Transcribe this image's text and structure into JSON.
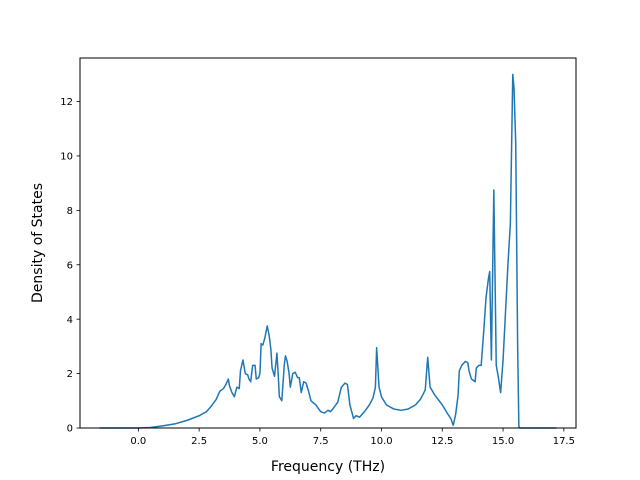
{
  "chart_data": {
    "type": "line",
    "title": "",
    "xlabel": "Frequency (THz)",
    "ylabel": "Density of States",
    "xlim": [
      -2.4,
      18.0
    ],
    "ylim": [
      0,
      13.6
    ],
    "xticks": [
      0.0,
      2.5,
      5.0,
      7.5,
      10.0,
      12.5,
      15.0,
      17.5
    ],
    "xtick_labels": [
      "0.0",
      "2.5",
      "5.0",
      "7.5",
      "10.0",
      "12.5",
      "15.0",
      "17.5"
    ],
    "yticks": [
      0,
      2,
      4,
      6,
      8,
      10,
      12
    ],
    "ytick_labels": [
      "0",
      "2",
      "4",
      "6",
      "8",
      "10",
      "12"
    ],
    "grid": false,
    "series": [
      {
        "color": "#1f77b4",
        "points": [
          [
            -1.6,
            0.0
          ],
          [
            0.0,
            0.0
          ],
          [
            0.5,
            0.02
          ],
          [
            1.0,
            0.08
          ],
          [
            1.5,
            0.15
          ],
          [
            2.0,
            0.28
          ],
          [
            2.5,
            0.45
          ],
          [
            2.8,
            0.6
          ],
          [
            3.0,
            0.8
          ],
          [
            3.2,
            1.05
          ],
          [
            3.35,
            1.35
          ],
          [
            3.5,
            1.45
          ],
          [
            3.6,
            1.6
          ],
          [
            3.7,
            1.8
          ],
          [
            3.75,
            1.55
          ],
          [
            3.85,
            1.3
          ],
          [
            3.95,
            1.15
          ],
          [
            4.05,
            1.5
          ],
          [
            4.15,
            1.45
          ],
          [
            4.2,
            2.1
          ],
          [
            4.3,
            2.5
          ],
          [
            4.4,
            2.0
          ],
          [
            4.5,
            1.95
          ],
          [
            4.55,
            1.8
          ],
          [
            4.62,
            1.7
          ],
          [
            4.7,
            2.3
          ],
          [
            4.8,
            2.3
          ],
          [
            4.85,
            1.8
          ],
          [
            4.95,
            1.85
          ],
          [
            5.0,
            2.0
          ],
          [
            5.05,
            3.1
          ],
          [
            5.12,
            3.05
          ],
          [
            5.2,
            3.3
          ],
          [
            5.3,
            3.75
          ],
          [
            5.38,
            3.4
          ],
          [
            5.45,
            2.9
          ],
          [
            5.5,
            2.2
          ],
          [
            5.6,
            1.9
          ],
          [
            5.7,
            2.75
          ],
          [
            5.75,
            2.0
          ],
          [
            5.8,
            1.15
          ],
          [
            5.9,
            1.0
          ],
          [
            6.0,
            2.3
          ],
          [
            6.05,
            2.65
          ],
          [
            6.12,
            2.45
          ],
          [
            6.2,
            2.0
          ],
          [
            6.25,
            1.5
          ],
          [
            6.35,
            2.0
          ],
          [
            6.45,
            2.05
          ],
          [
            6.55,
            1.85
          ],
          [
            6.62,
            1.85
          ],
          [
            6.7,
            1.3
          ],
          [
            6.8,
            1.7
          ],
          [
            6.9,
            1.65
          ],
          [
            7.0,
            1.35
          ],
          [
            7.1,
            1.0
          ],
          [
            7.3,
            0.85
          ],
          [
            7.5,
            0.6
          ],
          [
            7.65,
            0.55
          ],
          [
            7.8,
            0.65
          ],
          [
            7.9,
            0.6
          ],
          [
            8.0,
            0.7
          ],
          [
            8.2,
            0.95
          ],
          [
            8.35,
            1.5
          ],
          [
            8.5,
            1.65
          ],
          [
            8.6,
            1.6
          ],
          [
            8.7,
            0.85
          ],
          [
            8.85,
            0.35
          ],
          [
            8.95,
            0.45
          ],
          [
            9.1,
            0.4
          ],
          [
            9.3,
            0.6
          ],
          [
            9.5,
            0.85
          ],
          [
            9.65,
            1.1
          ],
          [
            9.75,
            1.5
          ],
          [
            9.8,
            2.95
          ],
          [
            9.9,
            1.5
          ],
          [
            10.0,
            1.15
          ],
          [
            10.2,
            0.85
          ],
          [
            10.5,
            0.7
          ],
          [
            10.8,
            0.65
          ],
          [
            11.1,
            0.7
          ],
          [
            11.4,
            0.85
          ],
          [
            11.6,
            1.05
          ],
          [
            11.8,
            1.4
          ],
          [
            11.85,
            2.0
          ],
          [
            11.9,
            2.6
          ],
          [
            12.0,
            1.5
          ],
          [
            12.2,
            1.2
          ],
          [
            12.5,
            0.85
          ],
          [
            12.7,
            0.55
          ],
          [
            12.85,
            0.35
          ],
          [
            12.95,
            0.1
          ],
          [
            13.05,
            0.5
          ],
          [
            13.15,
            1.2
          ],
          [
            13.2,
            2.1
          ],
          [
            13.3,
            2.3
          ],
          [
            13.45,
            2.45
          ],
          [
            13.55,
            2.4
          ],
          [
            13.6,
            2.1
          ],
          [
            13.7,
            1.8
          ],
          [
            13.85,
            1.7
          ],
          [
            13.9,
            2.2
          ],
          [
            14.0,
            2.3
          ],
          [
            14.1,
            2.3
          ],
          [
            14.2,
            3.5
          ],
          [
            14.3,
            4.8
          ],
          [
            14.4,
            5.5
          ],
          [
            14.45,
            5.75
          ],
          [
            14.52,
            2.5
          ],
          [
            14.62,
            8.75
          ],
          [
            14.72,
            2.3
          ],
          [
            14.8,
            1.9
          ],
          [
            14.9,
            1.3
          ],
          [
            15.0,
            2.5
          ],
          [
            15.2,
            6.0
          ],
          [
            15.3,
            7.5
          ],
          [
            15.4,
            13.0
          ],
          [
            15.45,
            12.5
          ],
          [
            15.52,
            10.5
          ],
          [
            15.6,
            3.0
          ],
          [
            15.65,
            0.05
          ],
          [
            15.7,
            0.0
          ],
          [
            17.2,
            0.0
          ]
        ]
      }
    ]
  }
}
